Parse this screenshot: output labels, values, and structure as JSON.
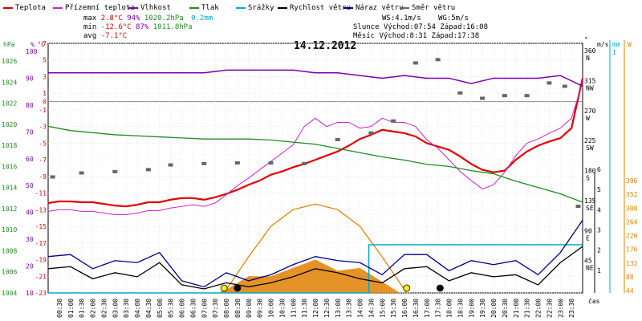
{
  "legend": [
    {
      "label": "Teplota",
      "color": "#e00000"
    },
    {
      "label": "Přízemní teplota",
      "color": "#cc22cc"
    },
    {
      "label": "Vlhkost",
      "color": "#7a00aa"
    },
    {
      "label": "Tlak",
      "color": "#228822"
    },
    {
      "label": "Srážky",
      "color": "#00aacc"
    },
    {
      "label": "Rychlost větru",
      "color": "#000000"
    },
    {
      "label": "Náraz větru",
      "color": "#000088"
    },
    {
      "label": "Směr větru",
      "color": "#666666"
    }
  ],
  "stats": {
    "max_label": "max",
    "max_temp": "2.8°C",
    "max_hum": "94%",
    "max_press": "1020.2hPa",
    "max_rain": "0.2mm",
    "min_label": "min",
    "min_temp": "-12.6°C",
    "min_hum": "87%",
    "min_press": "1011.8hPa",
    "avg_label": "avg",
    "avg_temp": "-7.1°C",
    "ws": "WS:4.1m/s",
    "wg": "WG:5m/s",
    "sun_label": "Slunce",
    "sun_rise": "Východ:07:54",
    "sun_set": "Západ:16:08",
    "moon_label": "Měsíc",
    "moon_rise": "Východ:8:31",
    "moon_set": "Západ:17:38"
  },
  "chart_data": {
    "type": "line",
    "title": "14.12.2012",
    "xlabel": "čas",
    "x_ticks": [
      "00:30",
      "01:00",
      "01:30",
      "02:00",
      "02:30",
      "03:00",
      "03:30",
      "04:00",
      "04:30",
      "05:00",
      "05:30",
      "06:00",
      "06:30",
      "07:00",
      "07:30",
      "08:00",
      "08:30",
      "09:00",
      "09:30",
      "10:00",
      "10:30",
      "11:00",
      "11:30",
      "12:00",
      "12:30",
      "13:00",
      "13:30",
      "14:00",
      "14:30",
      "15:00",
      "15:30",
      "16:00",
      "16:30",
      "17:00",
      "17:30",
      "18:00",
      "18:30",
      "19:00",
      "19:30",
      "20:00",
      "20:30",
      "21:00",
      "21:30",
      "22:00",
      "22:30",
      "23:00",
      "23:30"
    ],
    "axes": {
      "hPa": {
        "label": "hPa",
        "color": "#228822",
        "ticks": [
          "1026",
          "1024",
          "1022",
          "1020",
          "1018",
          "1016",
          "1014",
          "1012",
          "1010",
          "1008",
          "1006",
          "1004"
        ]
      },
      "percent": {
        "label": "%",
        "color": "#7a00aa",
        "ticks": [
          "100",
          "90",
          "80",
          "70",
          "60",
          "50",
          "40",
          "30",
          "20",
          "10"
        ]
      },
      "celsius": {
        "label": "°C",
        "color": "#e00000",
        "ticks": [
          "7",
          "5",
          "3",
          "1",
          "0",
          "-1",
          "-3",
          "-5",
          "-7",
          "-9",
          "-11",
          "-13",
          "-15",
          "-17",
          "-19",
          "-21",
          "-23"
        ]
      },
      "direction": {
        "label": "°",
        "color": "#000000",
        "ticks": [
          "360 N",
          "315 NW",
          "270 W",
          "225 SW",
          "180 S",
          "135 SE",
          "90 E",
          "45 NE"
        ]
      },
      "ms": {
        "label": "m/s",
        "color": "#000000",
        "ticks": [
          "6",
          "5",
          "4",
          "3",
          "2",
          "1"
        ]
      },
      "mm": {
        "label": "mm",
        "color": "#00aacc",
        "ticks": [
          "1"
        ]
      },
      "wm2": {
        "label": "W",
        "color": "#e08000",
        "ticks": [
          "396",
          "352",
          "308",
          "264",
          "220",
          "176",
          "132",
          "88",
          "44"
        ]
      }
    },
    "series": [
      {
        "name": "Teplota",
        "color": "#e00000",
        "unit": "°C",
        "x": [
          0,
          0.5,
          1,
          1.5,
          2,
          2.5,
          3,
          3.5,
          4,
          4.5,
          5,
          5.5,
          6,
          6.5,
          7,
          7.5,
          8,
          8.5,
          9,
          9.5,
          10,
          10.5,
          11,
          11.5,
          12,
          12.5,
          13,
          13.5,
          14,
          14.5,
          15,
          15.5,
          16,
          16.5,
          17,
          17.5,
          18,
          18.5,
          19,
          19.5,
          20,
          20.5,
          21,
          21.5,
          22,
          22.5,
          23,
          23.5,
          24
        ],
        "y": [
          -12.2,
          -12,
          -12,
          -12.1,
          -12.1,
          -12.3,
          -12.5,
          -12.6,
          -12.4,
          -12.1,
          -12.1,
          -11.8,
          -11.6,
          -11.6,
          -11.8,
          -11.5,
          -11.1,
          -10.6,
          -10.0,
          -9.5,
          -8.8,
          -8.4,
          -7.9,
          -7.5,
          -7.0,
          -6.5,
          -6.0,
          -5.3,
          -4.5,
          -4.0,
          -3.4,
          -3.6,
          -3.8,
          -4.2,
          -5.0,
          -5.4,
          -5.8,
          -6.6,
          -7.5,
          -8.2,
          -8.5,
          -8.3,
          -7.0,
          -6.0,
          -5.3,
          -4.8,
          -4.4,
          -3.2,
          2.8
        ]
      },
      {
        "name": "Přízemní teplota",
        "color": "#cc22cc",
        "unit": "°C",
        "x": [
          0,
          0.5,
          1,
          1.5,
          2,
          2.5,
          3,
          3.5,
          4,
          4.5,
          5,
          5.5,
          6,
          6.5,
          7,
          7.5,
          8,
          8.5,
          9,
          9.5,
          10,
          10.5,
          11,
          11.5,
          12,
          12.5,
          13,
          13.5,
          14,
          14.5,
          15,
          15.5,
          16,
          16.5,
          17,
          17.5,
          18,
          18.5,
          19,
          19.5,
          20,
          20.5,
          21,
          21.5,
          22,
          22.5,
          23,
          23.5,
          24
        ],
        "y": [
          -13.2,
          -13,
          -13,
          -13.2,
          -13.2,
          -13.4,
          -13.6,
          -13.6,
          -13.4,
          -13.1,
          -13.1,
          -12.8,
          -12.6,
          -12.4,
          -12.6,
          -12.2,
          -11.2,
          -10.1,
          -9.2,
          -8.2,
          -7.2,
          -6.2,
          -5.2,
          -3.0,
          -2.0,
          -3.0,
          -2.5,
          -2.5,
          -3.2,
          -3.0,
          -2.0,
          -2.5,
          -2.5,
          -3.0,
          -4.6,
          -5.6,
          -7.0,
          -8.4,
          -9.5,
          -10.5,
          -10.0,
          -8.5,
          -6.5,
          -5.0,
          -4.5,
          -3.8,
          -3.2,
          -2.0,
          2.3
        ]
      },
      {
        "name": "Vlhkost",
        "color": "#7a00aa",
        "unit": "%",
        "x": [
          0,
          1,
          2,
          3,
          4,
          5,
          6,
          7,
          8,
          9,
          10,
          11,
          12,
          13,
          14,
          15,
          16,
          17,
          18,
          19,
          20,
          21,
          22,
          23,
          24
        ],
        "y": [
          92,
          92,
          92,
          92,
          92,
          92,
          92,
          92,
          93,
          93,
          93,
          93,
          92,
          92,
          91,
          90,
          91,
          90,
          90,
          88,
          90,
          90,
          90,
          91,
          87
        ]
      },
      {
        "name": "Tlak",
        "color": "#228822",
        "unit": "hPa",
        "x": [
          0,
          1,
          2,
          3,
          4,
          5,
          6,
          7,
          8,
          9,
          10,
          11,
          12,
          13,
          14,
          15,
          16,
          17,
          18,
          19,
          20,
          21,
          22,
          23,
          24
        ],
        "y": [
          1019.8,
          1019.4,
          1019.2,
          1019.0,
          1018.9,
          1018.8,
          1018.7,
          1018.6,
          1018.6,
          1018.6,
          1018.5,
          1018.3,
          1018.1,
          1017.7,
          1017.3,
          1016.9,
          1016.6,
          1016.2,
          1016.0,
          1015.6,
          1015.3,
          1014.6,
          1014.0,
          1013.4,
          1012.6
        ]
      },
      {
        "name": "Srážky",
        "color": "#00aacc",
        "unit": "mm",
        "x": [
          0,
          14.4,
          14.4,
          23.99
        ],
        "y": [
          0,
          0,
          0.2,
          0.2
        ]
      },
      {
        "name": "Rychlost větru",
        "color": "#000000",
        "unit": "m/s",
        "x": [
          0,
          1,
          2,
          3,
          4,
          5,
          6,
          7,
          8,
          9,
          10,
          11,
          12,
          13,
          14,
          15,
          16,
          17,
          18,
          19,
          20,
          21,
          22,
          23,
          24
        ],
        "y": [
          1.2,
          1.3,
          0.7,
          1.0,
          0.8,
          1.5,
          0.4,
          0.2,
          0.5,
          0.3,
          0.5,
          0.8,
          1.2,
          1.0,
          0.7,
          0.5,
          1.2,
          1.3,
          0.6,
          1.0,
          0.8,
          0.9,
          0.4,
          1.5,
          2.3
        ]
      },
      {
        "name": "Náraz větru",
        "color": "#000088",
        "unit": "m/s",
        "x": [
          0,
          1,
          2,
          3,
          4,
          5,
          6,
          7,
          8,
          9,
          10,
          11,
          12,
          13,
          14,
          15,
          16,
          17,
          18,
          19,
          20,
          21,
          22,
          23,
          24
        ],
        "y": [
          1.8,
          1.9,
          1.2,
          1.6,
          1.5,
          2.0,
          0.6,
          0.3,
          1.0,
          0.6,
          0.9,
          1.4,
          1.8,
          1.6,
          1.5,
          0.9,
          1.9,
          1.9,
          1.1,
          1.6,
          1.4,
          1.6,
          0.9,
          2.0,
          3.6
        ]
      },
      {
        "name": "Směr větru",
        "color": "#666666",
        "unit": "°",
        "x": [
          0.2,
          1.5,
          3,
          4.5,
          5.5,
          7,
          8.5,
          10,
          11.5,
          13,
          14.5,
          15.5,
          16.5,
          17.5,
          18.5,
          19.5,
          20.5,
          21.5,
          22.5,
          23.2,
          23.8
        ],
        "y": [
          174,
          180,
          182,
          185,
          192,
          194,
          195,
          195,
          194,
          230,
          240,
          258,
          345,
          350,
          300,
          292,
          296,
          296,
          315,
          310,
          130
        ]
      }
    ],
    "radiation": {
      "name": "radiation",
      "color": "#e08000",
      "x": [
        7.6,
        8,
        9,
        10,
        11,
        12,
        13,
        14,
        15,
        15.8
      ],
      "y": [
        0,
        12,
        60,
        60,
        90,
        120,
        80,
        90,
        40,
        0
      ]
    },
    "solar_curve": {
      "color": "#e08000",
      "x": [
        7.9,
        9,
        10,
        11,
        12,
        13,
        14,
        15,
        16.1
      ],
      "y": [
        0,
        130,
        240,
        300,
        320,
        300,
        240,
        130,
        0
      ]
    }
  }
}
